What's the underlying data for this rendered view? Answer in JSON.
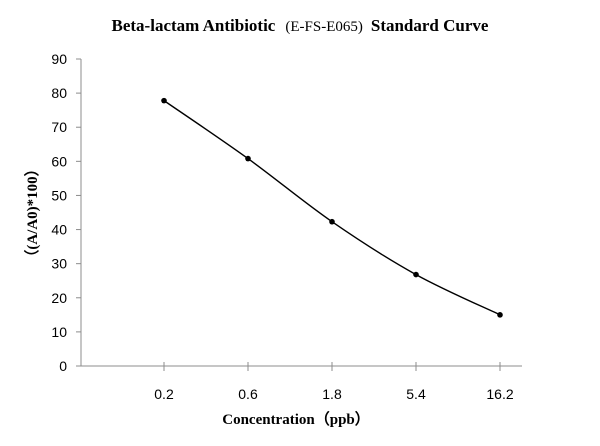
{
  "chart_data": {
    "type": "line",
    "title_parts": [
      "Beta-lactam Antibiotic",
      "(E-FS-E065)",
      "Standard Curve"
    ],
    "xlabel": "Concentration（ppb）",
    "ylabel": "（(A/A0)*100）",
    "categories": [
      "0.2",
      "0.6",
      "1.8",
      "5.4",
      "16.2"
    ],
    "yticks": [
      0,
      10,
      20,
      30,
      40,
      50,
      60,
      70,
      80,
      90
    ],
    "ylim": [
      0,
      90
    ],
    "grid": false,
    "series": [
      {
        "values": [
          77.8,
          60.8,
          42.3,
          26.8,
          15.0
        ]
      }
    ]
  }
}
